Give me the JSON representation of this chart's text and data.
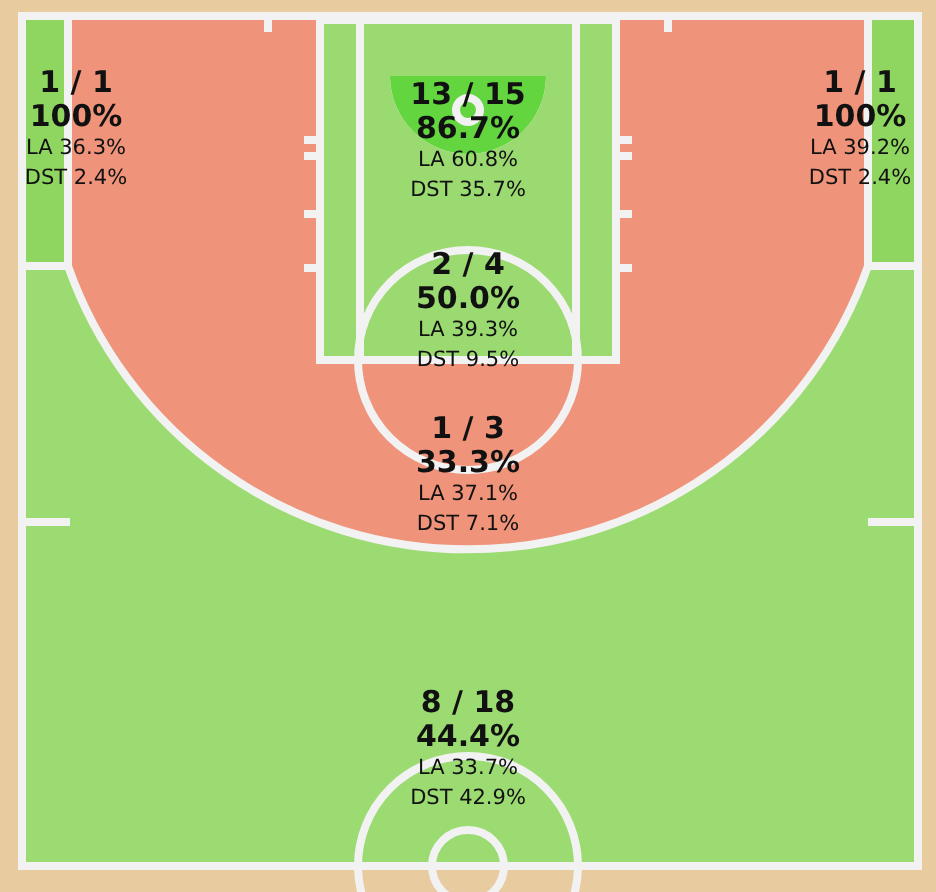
{
  "chart_data": {
    "type": "other",
    "categories": [
      null,
      null,
      null,
      null,
      null,
      null
    ],
    "values": [
      100,
      86.7,
      100,
      50.0,
      33.3,
      44.4
    ],
    "value_labels": [
      "100%",
      "86.7%",
      "100%",
      "50.0%",
      "33.3%",
      "44.4%"
    ],
    "colors": [
      "#8fd660",
      "#5ed43a",
      "#8fd660",
      "#8fd660",
      "#ec8467",
      "#8fd660"
    ],
    "annotations": [
      "1 / 1",
      "LA 36.3%",
      "DST 2.4%",
      "13 / 15",
      "LA 60.8%",
      "DST 35.7%",
      "1 / 1",
      "LA 39.2%",
      "DST 2.4%",
      "2 / 4",
      "LA 39.3%",
      "DST 9.5%",
      "1 / 3",
      "LA 37.1%",
      "DST 7.1%",
      "8 / 18",
      "LA 33.7%",
      "DST 42.9%"
    ]
  }
}
